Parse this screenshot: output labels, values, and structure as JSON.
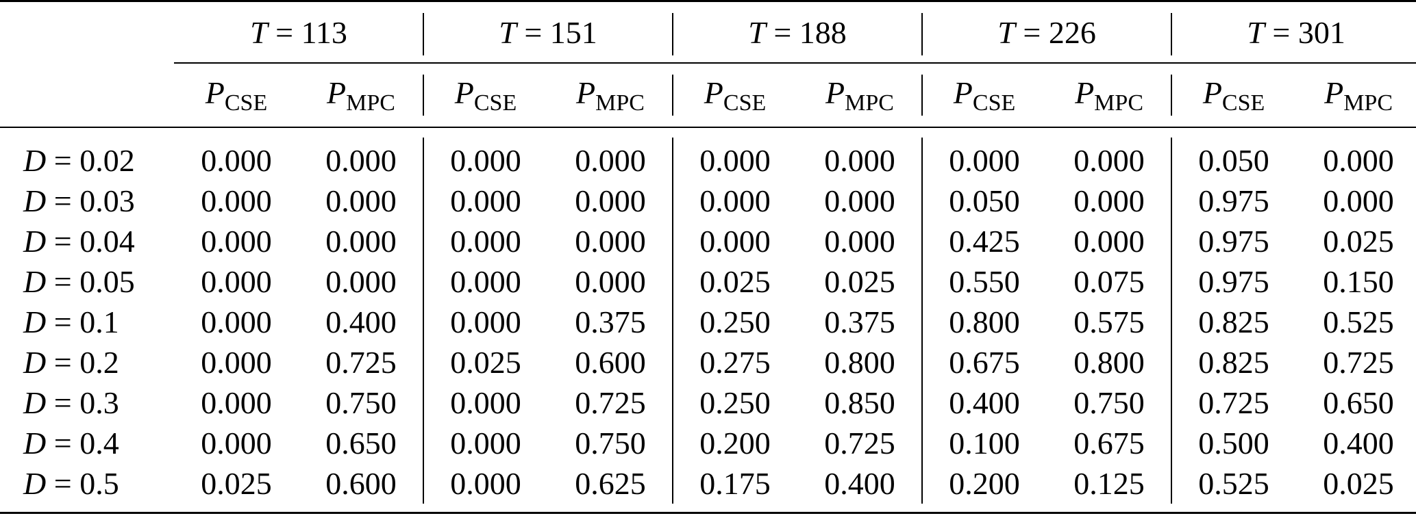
{
  "table": {
    "groups": [
      {
        "var": "T",
        "eq": "=",
        "value": "113"
      },
      {
        "var": "T",
        "eq": "=",
        "value": "151"
      },
      {
        "var": "T",
        "eq": "=",
        "value": "188"
      },
      {
        "var": "T",
        "eq": "=",
        "value": "226"
      },
      {
        "var": "T",
        "eq": "=",
        "value": "301"
      }
    ],
    "subheaders": {
      "a": {
        "var": "P",
        "sub": "CSE"
      },
      "b": {
        "var": "P",
        "sub": "MPC"
      }
    },
    "rows": [
      {
        "var": "D",
        "eq": "=",
        "value": "0.02",
        "cells": [
          "0.000",
          "0.000",
          "0.000",
          "0.000",
          "0.000",
          "0.000",
          "0.000",
          "0.000",
          "0.050",
          "0.000"
        ]
      },
      {
        "var": "D",
        "eq": "=",
        "value": "0.03",
        "cells": [
          "0.000",
          "0.000",
          "0.000",
          "0.000",
          "0.000",
          "0.000",
          "0.050",
          "0.000",
          "0.975",
          "0.000"
        ]
      },
      {
        "var": "D",
        "eq": "=",
        "value": "0.04",
        "cells": [
          "0.000",
          "0.000",
          "0.000",
          "0.000",
          "0.000",
          "0.000",
          "0.425",
          "0.000",
          "0.975",
          "0.025"
        ]
      },
      {
        "var": "D",
        "eq": "=",
        "value": "0.05",
        "cells": [
          "0.000",
          "0.000",
          "0.000",
          "0.000",
          "0.025",
          "0.025",
          "0.550",
          "0.075",
          "0.975",
          "0.150"
        ]
      },
      {
        "var": "D",
        "eq": "=",
        "value": "0.1",
        "cells": [
          "0.000",
          "0.400",
          "0.000",
          "0.375",
          "0.250",
          "0.375",
          "0.800",
          "0.575",
          "0.825",
          "0.525"
        ]
      },
      {
        "var": "D",
        "eq": "=",
        "value": "0.2",
        "cells": [
          "0.000",
          "0.725",
          "0.025",
          "0.600",
          "0.275",
          "0.800",
          "0.675",
          "0.800",
          "0.825",
          "0.725"
        ]
      },
      {
        "var": "D",
        "eq": "=",
        "value": "0.3",
        "cells": [
          "0.000",
          "0.750",
          "0.000",
          "0.725",
          "0.250",
          "0.850",
          "0.400",
          "0.750",
          "0.725",
          "0.650"
        ]
      },
      {
        "var": "D",
        "eq": "=",
        "value": "0.4",
        "cells": [
          "0.000",
          "0.650",
          "0.000",
          "0.750",
          "0.200",
          "0.725",
          "0.100",
          "0.675",
          "0.500",
          "0.400"
        ]
      },
      {
        "var": "D",
        "eq": "=",
        "value": "0.5",
        "cells": [
          "0.025",
          "0.600",
          "0.000",
          "0.625",
          "0.175",
          "0.400",
          "0.200",
          "0.125",
          "0.525",
          "0.025"
        ]
      }
    ]
  }
}
